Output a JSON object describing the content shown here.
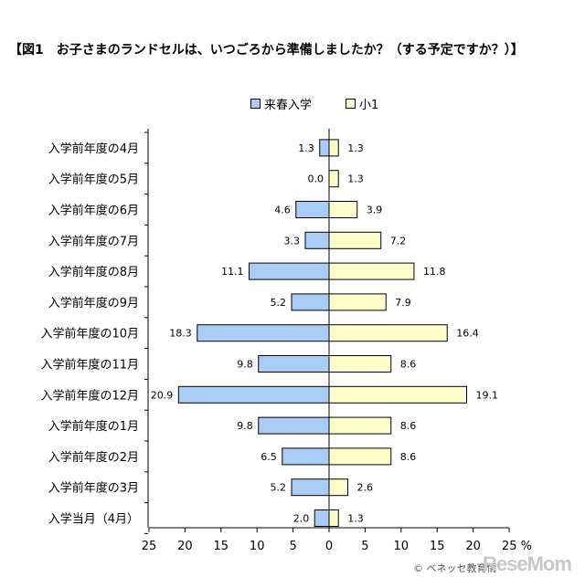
{
  "title": "【図1　お子さまのランドセルは、いつごろから準備しましたか？（する予定ですか？）】",
  "copyright": "© ベネッセ教育情",
  "logo": "ReseMom",
  "chart_data": {
    "type": "bar",
    "orientation": "horizontal-butterfly",
    "categories": [
      "入学前年度の4月",
      "入学前年度の5月",
      "入学前年度の6月",
      "入学前年度の7月",
      "入学前年度の8月",
      "入学前年度の9月",
      "入学前年度の10月",
      "入学前年度の11月",
      "入学前年度の12月",
      "入学前年度の1月",
      "入学前年度の2月",
      "入学前年度の3月",
      "入学当月（4月）"
    ],
    "series": [
      {
        "name": "来春入学",
        "color": "#a9cdf4",
        "side": "left",
        "values": [
          1.3,
          0.0,
          4.6,
          3.3,
          11.1,
          5.2,
          18.3,
          9.8,
          20.9,
          9.8,
          6.5,
          5.2,
          2.0
        ],
        "labels": [
          "1.3",
          "0.0",
          "4.6",
          "3.3",
          "11.1",
          "5.2",
          "18.3",
          "9.8",
          "20.9",
          "9.8",
          "6.5",
          "5.2",
          "2.0"
        ]
      },
      {
        "name": "小1",
        "color": "#ffffcc",
        "side": "right",
        "values": [
          1.3,
          1.3,
          3.9,
          7.2,
          11.8,
          7.9,
          16.4,
          8.6,
          19.1,
          8.6,
          8.6,
          2.6,
          1.3
        ],
        "labels": [
          "1.3",
          "1.3",
          "3.9",
          "7.2",
          "11.8",
          "7.9",
          "16.4",
          "8.6",
          "19.1",
          "8.6",
          "8.6",
          "2.6",
          "1.3"
        ]
      }
    ],
    "xlim": [
      -25,
      25
    ],
    "ticks": [
      "25",
      "20",
      "15",
      "10",
      "5",
      "0",
      "5",
      "10",
      "15",
      "20",
      "25 %"
    ],
    "legend_position": "top-center",
    "grid": false
  }
}
